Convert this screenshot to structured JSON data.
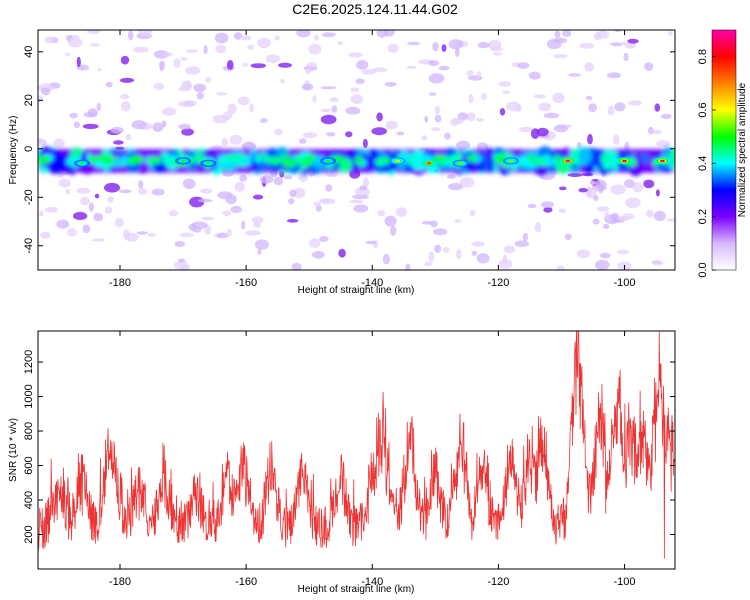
{
  "chart_data": [
    {
      "type": "heatmap",
      "title": "C2E6.2025.124.11.44.G02",
      "xlabel": "Height of straight line (km)",
      "ylabel": "Frequency (Hz)",
      "xlim": [
        -193,
        -92
      ],
      "ylim": [
        -50,
        49
      ],
      "xticks": [
        -180,
        -160,
        -140,
        -120,
        -100
      ],
      "yticks": [
        -40,
        -20,
        0,
        20,
        40
      ],
      "band_center_hz": -5,
      "band_halfwidth_hz": 4,
      "hotspots": [
        {
          "x": -109,
          "y": -5,
          "amp": 0.9
        },
        {
          "x": -100,
          "y": -5,
          "amp": 0.85
        },
        {
          "x": -94,
          "y": -5,
          "amp": 0.85
        },
        {
          "x": -131,
          "y": -6,
          "amp": 0.75
        },
        {
          "x": -136,
          "y": -5,
          "amp": 0.6
        },
        {
          "x": -118,
          "y": -5,
          "amp": 0.55
        },
        {
          "x": -126,
          "y": -6,
          "amp": 0.55
        },
        {
          "x": -166,
          "y": -6,
          "amp": 0.5
        },
        {
          "x": -170,
          "y": -5,
          "amp": 0.5
        },
        {
          "x": -147,
          "y": -5,
          "amp": 0.5
        },
        {
          "x": -186,
          "y": -6,
          "amp": 0.5
        }
      ],
      "colorbar": {
        "label": "Normalized spectral amplitude",
        "min": 0.0,
        "max": 0.9,
        "ticks": [
          "0.0",
          "0.2",
          "0.4",
          "0.6",
          "0.8"
        ],
        "colors": [
          "#ffffff",
          "#d9b8ff",
          "#7a00ff",
          "#0000ff",
          "#00ffff",
          "#00ff00",
          "#ffff00",
          "#ff8000",
          "#ff0000",
          "#ff00aa"
        ]
      }
    },
    {
      "type": "line",
      "title": "",
      "xlabel": "Height of straight line (km)",
      "ylabel": "SNR (10 * v/v)",
      "xlim": [
        -193,
        -92
      ],
      "ylim": [
        0,
        1380
      ],
      "xticks": [
        -180,
        -160,
        -140,
        -120,
        -100
      ],
      "yticks": [
        200,
        400,
        600,
        800,
        1000,
        1200
      ],
      "color": "#ee3333",
      "baseline": 260,
      "spikes": [
        {
          "x": -190,
          "y": 500
        },
        {
          "x": -186,
          "y": 600
        },
        {
          "x": -181.5,
          "y": 870
        },
        {
          "x": -177,
          "y": 560
        },
        {
          "x": -173,
          "y": 610
        },
        {
          "x": -168,
          "y": 500
        },
        {
          "x": -163,
          "y": 620
        },
        {
          "x": -160.5,
          "y": 700
        },
        {
          "x": -156,
          "y": 650
        },
        {
          "x": -151,
          "y": 640
        },
        {
          "x": -145,
          "y": 600
        },
        {
          "x": -140,
          "y": 620
        },
        {
          "x": -138.5,
          "y": 980
        },
        {
          "x": -134,
          "y": 850
        },
        {
          "x": -130,
          "y": 660
        },
        {
          "x": -126,
          "y": 890
        },
        {
          "x": -122.5,
          "y": 690
        },
        {
          "x": -118,
          "y": 720
        },
        {
          "x": -115,
          "y": 800
        },
        {
          "x": -113,
          "y": 870
        },
        {
          "x": -107.5,
          "y": 1380
        },
        {
          "x": -104,
          "y": 860
        },
        {
          "x": -101,
          "y": 1050
        },
        {
          "x": -99,
          "y": 780
        },
        {
          "x": -97,
          "y": 820
        },
        {
          "x": -94.5,
          "y": 1240
        },
        {
          "x": -93,
          "y": 760
        }
      ],
      "min_points": [
        {
          "x": -93.7,
          "y": 60
        }
      ]
    }
  ]
}
